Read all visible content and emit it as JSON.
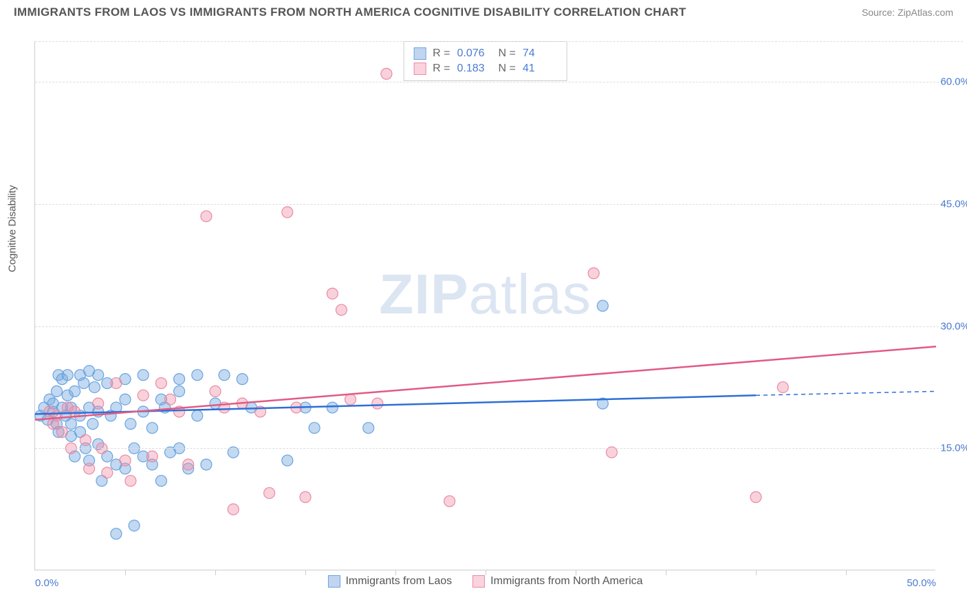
{
  "header": {
    "title": "IMMIGRANTS FROM LAOS VS IMMIGRANTS FROM NORTH AMERICA COGNITIVE DISABILITY CORRELATION CHART",
    "source": "Source: ZipAtlas.com"
  },
  "chart": {
    "type": "scatter",
    "ylabel": "Cognitive Disability",
    "watermark_bold": "ZIP",
    "watermark_rest": "atlas",
    "background_color": "#ffffff",
    "grid_color": "#dddddd",
    "axis_color": "#cccccc",
    "tick_label_color": "#4a7bd0",
    "label_color": "#555555",
    "xlim": [
      0,
      50
    ],
    "ylim": [
      0,
      65
    ],
    "y_ticks": [
      15,
      30,
      45,
      60
    ],
    "y_tick_labels": [
      "15.0%",
      "30.0%",
      "45.0%",
      "60.0%"
    ],
    "x_minor_ticks": [
      5,
      10,
      15,
      20,
      25,
      30,
      35,
      40,
      45
    ],
    "x_tick_labels": {
      "0": "0.0%",
      "50": "50.0%"
    },
    "stats": [
      {
        "swatch": "blue",
        "r_label": "R =",
        "r": "0.076",
        "n_label": "N =",
        "n": "74"
      },
      {
        "swatch": "pink",
        "r_label": "R =",
        "r": "0.183",
        "n_label": "N =",
        "n": "41"
      }
    ],
    "legend": [
      {
        "swatch": "blue",
        "label": "Immigrants from Laos"
      },
      {
        "swatch": "pink",
        "label": "Immigrants from North America"
      }
    ],
    "series": [
      {
        "name": "laos",
        "color_fill": "rgba(120,170,225,0.45)",
        "color_stroke": "#6aa3e0",
        "marker_r": 8,
        "trend": {
          "x1": 0,
          "y1": 19.2,
          "x2": 40,
          "y2": 21.5,
          "dash_x2": 50,
          "dash_y2": 22.0,
          "stroke": "#2d6fd6",
          "width": 2.5
        },
        "points": [
          [
            0.3,
            19
          ],
          [
            0.5,
            20
          ],
          [
            0.7,
            18.5
          ],
          [
            0.8,
            21
          ],
          [
            1.0,
            19.5
          ],
          [
            1.0,
            20.5
          ],
          [
            1.2,
            18
          ],
          [
            1.2,
            22
          ],
          [
            1.3,
            24
          ],
          [
            1.3,
            17
          ],
          [
            1.5,
            20
          ],
          [
            1.5,
            23.5
          ],
          [
            1.7,
            19
          ],
          [
            1.8,
            21.5
          ],
          [
            1.8,
            24
          ],
          [
            2.0,
            18
          ],
          [
            2.0,
            20
          ],
          [
            2.0,
            16.5
          ],
          [
            2.2,
            14
          ],
          [
            2.2,
            22
          ],
          [
            2.5,
            24
          ],
          [
            2.5,
            19
          ],
          [
            2.5,
            17
          ],
          [
            2.7,
            23
          ],
          [
            2.8,
            15
          ],
          [
            3.0,
            20
          ],
          [
            3.0,
            24.5
          ],
          [
            3.0,
            13.5
          ],
          [
            3.2,
            18
          ],
          [
            3.3,
            22.5
          ],
          [
            3.5,
            19.5
          ],
          [
            3.5,
            24
          ],
          [
            3.5,
            15.5
          ],
          [
            3.7,
            11
          ],
          [
            4.0,
            23
          ],
          [
            4.0,
            14
          ],
          [
            4.2,
            19
          ],
          [
            4.5,
            20
          ],
          [
            4.5,
            13
          ],
          [
            4.5,
            4.5
          ],
          [
            5.0,
            21
          ],
          [
            5.0,
            23.5
          ],
          [
            5.0,
            12.5
          ],
          [
            5.3,
            18
          ],
          [
            5.5,
            15
          ],
          [
            5.5,
            5.5
          ],
          [
            6.0,
            19.5
          ],
          [
            6.0,
            14
          ],
          [
            6.0,
            24
          ],
          [
            6.5,
            17.5
          ],
          [
            6.5,
            13
          ],
          [
            7.0,
            21
          ],
          [
            7.0,
            11
          ],
          [
            7.2,
            20
          ],
          [
            7.5,
            14.5
          ],
          [
            8.0,
            22
          ],
          [
            8.0,
            23.5
          ],
          [
            8.0,
            15
          ],
          [
            8.5,
            12.5
          ],
          [
            9.0,
            19
          ],
          [
            9.0,
            24
          ],
          [
            9.5,
            13
          ],
          [
            10.0,
            20.5
          ],
          [
            10.5,
            24
          ],
          [
            11.0,
            14.5
          ],
          [
            11.5,
            23.5
          ],
          [
            12.0,
            20
          ],
          [
            14.0,
            13.5
          ],
          [
            15.0,
            20
          ],
          [
            15.5,
            17.5
          ],
          [
            16.5,
            20
          ],
          [
            18.5,
            17.5
          ],
          [
            31.5,
            32.5
          ],
          [
            31.5,
            20.5
          ]
        ]
      },
      {
        "name": "north_america",
        "color_fill": "rgba(240,140,165,0.40)",
        "color_stroke": "#e88ba5",
        "marker_r": 8,
        "trend": {
          "x1": 0,
          "y1": 18.5,
          "x2": 50,
          "y2": 27.5,
          "stroke": "#e05a85",
          "width": 2.5
        },
        "points": [
          [
            0.8,
            19.5
          ],
          [
            1.0,
            18
          ],
          [
            1.2,
            19
          ],
          [
            1.5,
            17
          ],
          [
            1.8,
            20
          ],
          [
            2.0,
            15
          ],
          [
            2.2,
            19.5
          ],
          [
            2.8,
            16
          ],
          [
            3.0,
            12.5
          ],
          [
            3.5,
            20.5
          ],
          [
            3.7,
            15
          ],
          [
            4.0,
            12
          ],
          [
            4.5,
            23
          ],
          [
            5.0,
            13.5
          ],
          [
            5.3,
            11
          ],
          [
            6.0,
            21.5
          ],
          [
            6.5,
            14
          ],
          [
            7.0,
            23
          ],
          [
            7.5,
            21
          ],
          [
            8.0,
            19.5
          ],
          [
            8.5,
            13
          ],
          [
            9.5,
            43.5
          ],
          [
            10.0,
            22
          ],
          [
            10.5,
            20
          ],
          [
            11.0,
            7.5
          ],
          [
            11.5,
            20.5
          ],
          [
            12.5,
            19.5
          ],
          [
            13.0,
            9.5
          ],
          [
            14.0,
            44
          ],
          [
            14.5,
            20
          ],
          [
            15.0,
            9
          ],
          [
            16.5,
            34
          ],
          [
            17.0,
            32
          ],
          [
            17.5,
            21
          ],
          [
            19.0,
            20.5
          ],
          [
            19.5,
            61
          ],
          [
            23.0,
            8.5
          ],
          [
            31.0,
            36.5
          ],
          [
            32.0,
            14.5
          ],
          [
            40.0,
            9
          ],
          [
            41.5,
            22.5
          ]
        ]
      }
    ]
  }
}
